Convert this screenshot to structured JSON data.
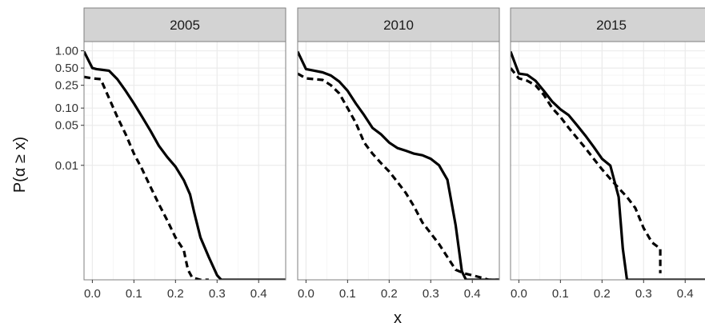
{
  "chart_data": {
    "type": "line",
    "layout": "facet",
    "xlabel": "x",
    "ylabel": "P(α ≥ x)",
    "xlim": [
      -0.02,
      0.465
    ],
    "ylim": [
      0.0001,
      1.45
    ],
    "y_scale": "log",
    "grid": true,
    "x_ticks": [
      0.0,
      0.1,
      0.2,
      0.3,
      0.4
    ],
    "x_tick_labels": [
      "0.0",
      "0.1",
      "0.2",
      "0.3",
      "0.4"
    ],
    "y_ticks": [
      1.0,
      0.5,
      0.25,
      0.1,
      0.05,
      0.01
    ],
    "y_tick_labels": [
      "1.00",
      "0.50",
      "0.25",
      "0.10",
      "0.05",
      "0.01"
    ],
    "colors": {
      "panel_bg": "#ffffff",
      "strip_bg": "#d3d3d3",
      "border": "#7f7f7f",
      "grid": "#ebebeb",
      "line": "#000000"
    },
    "panels": [
      {
        "label": "2005",
        "series": [
          {
            "style": "solid",
            "x": [
              -0.02,
              0.0,
              0.01,
              0.04,
              0.06,
              0.08,
              0.1,
              0.12,
              0.14,
              0.16,
              0.18,
              0.2,
              0.22,
              0.235,
              0.245,
              0.26,
              0.28,
              0.3,
              0.31,
              0.33,
              0.36,
              0.4,
              0.465
            ],
            "y": [
              0.97,
              0.5,
              0.48,
              0.45,
              0.32,
              0.2,
              0.12,
              0.07,
              0.04,
              0.022,
              0.014,
              0.0095,
              0.0055,
              0.0031,
              0.0015,
              0.00055,
              0.00025,
              0.00012,
              0.0001,
              0.0001,
              0.0001,
              0.0001,
              0.0001
            ]
          },
          {
            "style": "dashed",
            "x": [
              -0.02,
              0.0,
              0.02,
              0.04,
              0.06,
              0.08,
              0.1,
              0.12,
              0.14,
              0.16,
              0.18,
              0.2,
              0.22,
              0.225,
              0.23,
              0.24,
              0.26,
              0.28
            ],
            "y": [
              0.35,
              0.33,
              0.32,
              0.15,
              0.07,
              0.035,
              0.016,
              0.0085,
              0.0042,
              0.0021,
              0.0011,
              0.00055,
              0.00033,
              0.00022,
              0.00015,
              0.00011,
              0.0001,
              0.0001
            ]
          }
        ]
      },
      {
        "label": "2010",
        "series": [
          {
            "style": "solid",
            "x": [
              -0.02,
              0.0,
              0.02,
              0.04,
              0.06,
              0.08,
              0.1,
              0.12,
              0.14,
              0.16,
              0.18,
              0.2,
              0.22,
              0.24,
              0.26,
              0.28,
              0.3,
              0.32,
              0.34,
              0.36,
              0.375,
              0.385,
              0.4,
              0.465
            ],
            "y": [
              0.97,
              0.48,
              0.45,
              0.42,
              0.37,
              0.29,
              0.2,
              0.12,
              0.075,
              0.045,
              0.035,
              0.025,
              0.02,
              0.018,
              0.016,
              0.015,
              0.013,
              0.01,
              0.0056,
              0.0009,
              0.00014,
              0.0001,
              0.0001,
              0.0001
            ]
          },
          {
            "style": "dashed",
            "x": [
              -0.02,
              0.0,
              0.02,
              0.04,
              0.06,
              0.08,
              0.1,
              0.12,
              0.14,
              0.16,
              0.18,
              0.2,
              0.22,
              0.24,
              0.26,
              0.28,
              0.3,
              0.32,
              0.34,
              0.36,
              0.38,
              0.4,
              0.42,
              0.44,
              0.465
            ],
            "y": [
              0.4,
              0.33,
              0.32,
              0.31,
              0.25,
              0.18,
              0.1,
              0.055,
              0.025,
              0.016,
              0.011,
              0.0078,
              0.0051,
              0.0033,
              0.0019,
              0.001,
              0.00065,
              0.00042,
              0.00025,
              0.00015,
              0.00013,
              0.00012,
              0.00011,
              0.0001,
              0.0001
            ]
          }
        ]
      },
      {
        "label": "2015",
        "series": [
          {
            "style": "solid",
            "x": [
              -0.02,
              0.0,
              0.02,
              0.04,
              0.06,
              0.08,
              0.1,
              0.12,
              0.14,
              0.16,
              0.18,
              0.2,
              0.22,
              0.24,
              0.25,
              0.26,
              0.28,
              0.3,
              0.4,
              0.465
            ],
            "y": [
              0.97,
              0.4,
              0.38,
              0.3,
              0.2,
              0.13,
              0.095,
              0.075,
              0.05,
              0.033,
              0.021,
              0.013,
              0.0099,
              0.0028,
              0.00035,
              0.0001,
              0.0001,
              0.0001,
              0.0001,
              0.0001
            ]
          },
          {
            "style": "dashed",
            "x": [
              -0.02,
              0.0,
              0.02,
              0.04,
              0.06,
              0.08,
              0.1,
              0.12,
              0.14,
              0.16,
              0.18,
              0.2,
              0.22,
              0.24,
              0.26,
              0.28,
              0.3,
              0.32,
              0.34,
              0.34
            ],
            "y": [
              0.5,
              0.33,
              0.3,
              0.25,
              0.17,
              0.1,
              0.07,
              0.045,
              0.03,
              0.02,
              0.013,
              0.0085,
              0.0058,
              0.004,
              0.0028,
              0.0018,
              0.0008,
              0.00045,
              0.00035,
              0.00013
            ]
          }
        ]
      }
    ]
  }
}
